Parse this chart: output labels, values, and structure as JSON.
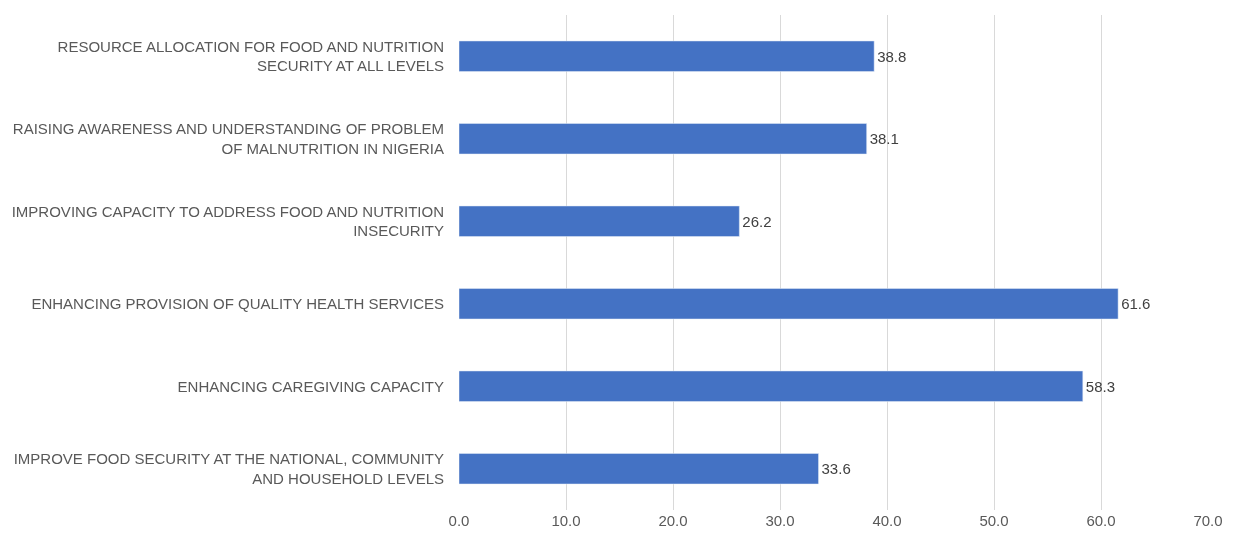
{
  "chart_data": {
    "type": "bar",
    "orientation": "horizontal",
    "categories": [
      "RESOURCE ALLOCATION FOR FOOD AND NUTRITION SECURITY AT ALL LEVELS",
      "RAISING AWARENESS AND UNDERSTANDING OF PROBLEM OF MALNUTRITION IN NIGERIA",
      "IMPROVING CAPACITY TO ADDRESS FOOD AND NUTRITION INSECURITY",
      "ENHANCING PROVISION OF QUALITY HEALTH SERVICES",
      "ENHANCING CAREGIVING CAPACITY",
      "IMPROVE FOOD SECURITY AT THE NATIONAL, COMMUNITY AND HOUSEHOLD LEVELS"
    ],
    "values": [
      38.8,
      38.1,
      26.2,
      61.6,
      58.3,
      33.6
    ],
    "color": "#4472c4",
    "xlim": [
      0,
      70
    ],
    "xticks": [
      {
        "value": 0,
        "label": "0.0"
      },
      {
        "value": 10,
        "label": "10.0"
      },
      {
        "value": 20,
        "label": "20.0"
      },
      {
        "value": 30,
        "label": "30.0"
      },
      {
        "value": 40,
        "label": "40.0"
      },
      {
        "value": 50,
        "label": "50.0"
      },
      {
        "value": 60,
        "label": "60.0"
      },
      {
        "value": 70,
        "label": "70.0"
      }
    ],
    "grid": "x",
    "data_labels": true,
    "legend": false
  }
}
